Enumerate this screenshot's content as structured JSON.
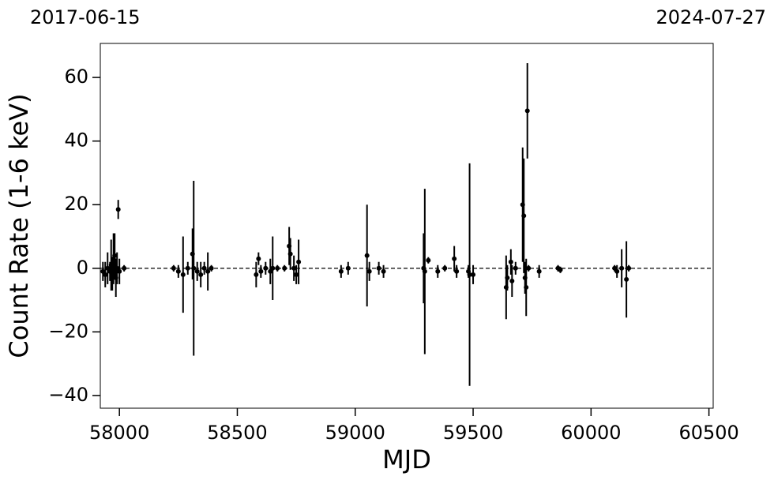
{
  "chart_data": {
    "type": "errorbar",
    "top_left_label": "2017-06-15",
    "top_right_label": "2024-07-27",
    "x_label": "MJD",
    "y_label": "Count Rate (1-6 keV)",
    "xlim": [
      57919,
      60518
    ],
    "ylim": [
      -44,
      70.7
    ],
    "xticks": [
      58000,
      58500,
      59000,
      59500,
      60000,
      60500
    ],
    "yticks": [
      {
        "value": -40,
        "label": "−40"
      },
      {
        "value": -20,
        "label": "−20"
      },
      0,
      20,
      40,
      60
    ],
    "reference_line": 0,
    "series": [
      {
        "color": "#000000",
        "x": [
          57930,
          57940,
          57950,
          57960,
          57965,
          57970,
          57975,
          57980,
          57985,
          57990,
          57995,
          58000,
          58020,
          58230,
          58250,
          58270,
          58290,
          58310,
          58315,
          58330,
          58345,
          58360,
          58375,
          58390,
          58580,
          58590,
          58600,
          58620,
          58640,
          58650,
          58670,
          58700,
          58720,
          58725,
          58740,
          58750,
          58760,
          58940,
          58970,
          59050,
          59060,
          59100,
          59120,
          59290,
          59295,
          59310,
          59350,
          59380,
          59420,
          59430,
          59480,
          59485,
          59500,
          59640,
          59645,
          59660,
          59665,
          59680,
          59710,
          59715,
          59720,
          59725,
          59730,
          59735,
          59780,
          59860,
          59870,
          60100,
          60110,
          60130,
          60150,
          60160
        ],
        "values": [
          -1,
          -2,
          0,
          -1,
          1,
          -2,
          3,
          4,
          -3,
          0,
          18.5,
          -1,
          0,
          0,
          -1,
          -2,
          0,
          4.5,
          0,
          -1,
          -2,
          0,
          -1,
          0,
          -2,
          3,
          -1,
          0,
          -1,
          0,
          0,
          0,
          7,
          4.5,
          0,
          -2,
          2,
          -1,
          0,
          4,
          -1,
          0,
          -1,
          0,
          -1,
          2.5,
          -1,
          0,
          3,
          -1,
          -1,
          -2,
          -2,
          -6,
          -3,
          2,
          -4,
          0,
          20,
          16.5,
          -3,
          -6,
          49.5,
          0,
          -1,
          0,
          -0.5,
          0,
          -1,
          0,
          -3.5,
          0
        ],
        "errors": [
          3,
          4,
          5,
          3,
          8,
          5,
          8,
          7,
          6,
          5,
          3,
          4,
          1,
          1,
          2,
          12,
          2,
          8,
          27.5,
          3,
          4,
          2,
          6,
          1,
          4,
          2,
          2,
          2,
          4,
          10,
          1,
          1,
          6,
          5,
          4,
          3,
          7,
          2,
          2,
          16,
          3,
          2,
          2,
          11,
          26,
          1,
          2,
          1,
          4,
          2,
          2,
          35,
          3,
          10,
          4,
          4,
          5,
          2,
          18,
          18,
          5,
          9,
          15,
          1,
          2,
          1,
          1,
          1,
          2,
          6,
          12,
          1
        ]
      }
    ]
  }
}
